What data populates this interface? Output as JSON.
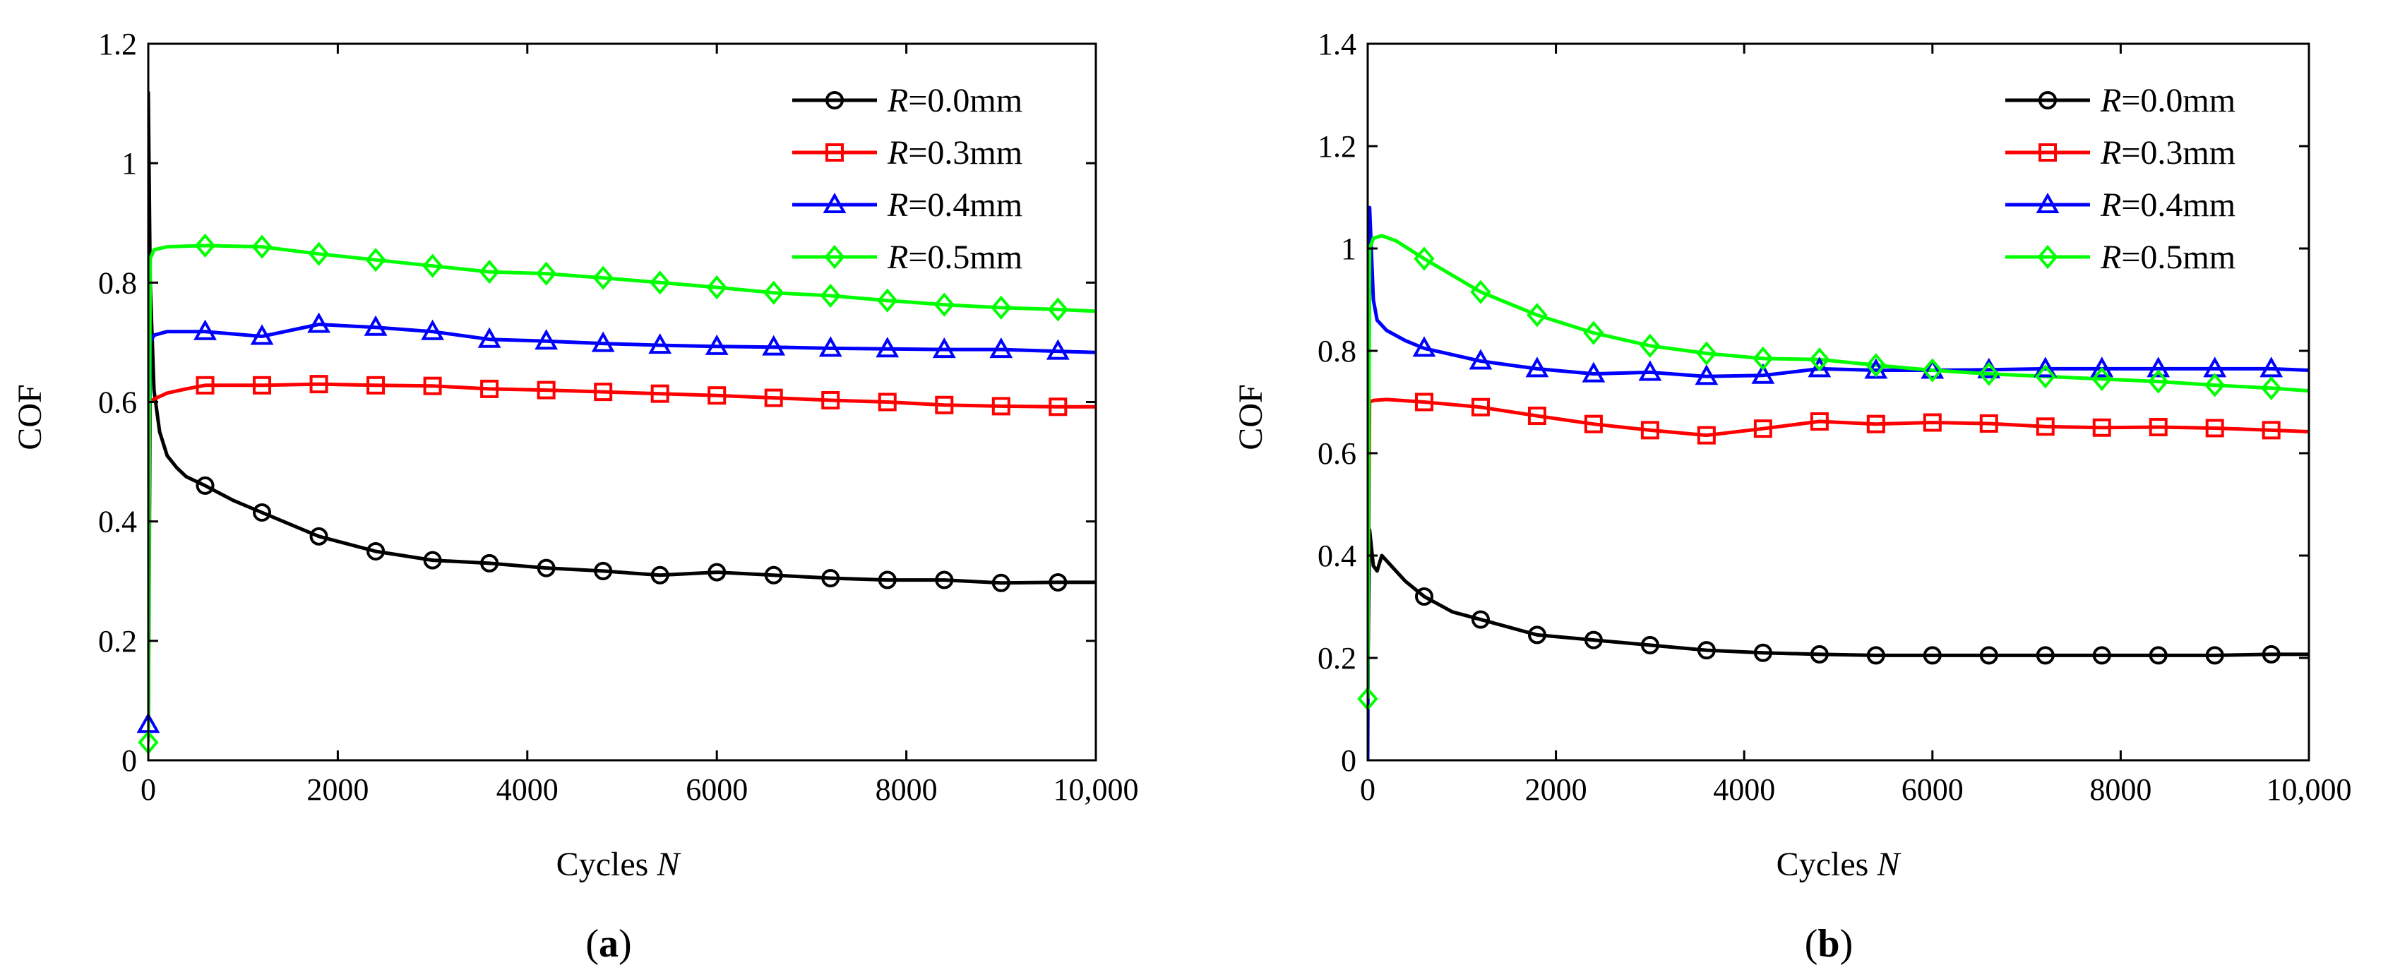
{
  "figure": {
    "charts": [
      {
        "id": "a",
        "caption_open": "(",
        "caption_letter": "a",
        "caption_close": ")"
      },
      {
        "id": "b",
        "caption_open": "(",
        "caption_letter": "b",
        "caption_close": ")"
      }
    ]
  },
  "chart_data": [
    {
      "type": "line",
      "panel": "a",
      "xlabel": "Cycles",
      "xlabel_var": "N",
      "ylabel": "COF",
      "xlim": [
        0,
        10000
      ],
      "ylim": [
        0,
        1.2
      ],
      "xticks": [
        0,
        2000,
        4000,
        6000,
        8000,
        10000
      ],
      "xtick_labels": [
        "0",
        "2000",
        "4000",
        "6000",
        "8000",
        "10,000"
      ],
      "yticks": [
        0,
        0.2,
        0.4,
        0.6,
        0.8,
        1,
        1.2
      ],
      "ytick_labels": [
        "0",
        "0.2",
        "0.4",
        "0.6",
        "0.8",
        "1",
        "1.2"
      ],
      "legend_position": "top-right",
      "series": [
        {
          "name": "R=0.0mm",
          "var": "R",
          "label": "=0.0mm",
          "color": "#000000",
          "marker": "circle",
          "x": [
            0,
            20,
            60,
            120,
            200,
            300,
            400,
            600,
            900,
            1200,
            1800,
            2400,
            3000,
            3600,
            4200,
            4800,
            5400,
            6000,
            6600,
            7200,
            7800,
            8400,
            9000,
            9600,
            10000
          ],
          "y": [
            1.12,
            0.8,
            0.62,
            0.55,
            0.51,
            0.49,
            0.475,
            0.46,
            0.435,
            0.415,
            0.375,
            0.35,
            0.335,
            0.33,
            0.322,
            0.317,
            0.31,
            0.315,
            0.31,
            0.305,
            0.302,
            0.302,
            0.297,
            0.298,
            0.298
          ],
          "marker_x": [
            600,
            1200,
            1800,
            2400,
            3000,
            3600,
            4200,
            4800,
            5400,
            6000,
            6600,
            7200,
            7800,
            8400,
            9000,
            9600
          ]
        },
        {
          "name": "R=0.3mm",
          "var": "R",
          "label": "=0.3mm",
          "color": "#ff0000",
          "marker": "square",
          "x": [
            0,
            20,
            60,
            200,
            400,
            600,
            1200,
            1800,
            2400,
            3000,
            3600,
            4200,
            4800,
            5400,
            6000,
            6600,
            7200,
            7800,
            8400,
            9000,
            9600,
            10000
          ],
          "y": [
            0.05,
            0.6,
            0.605,
            0.615,
            0.622,
            0.628,
            0.628,
            0.63,
            0.628,
            0.627,
            0.622,
            0.62,
            0.617,
            0.614,
            0.611,
            0.607,
            0.603,
            0.6,
            0.595,
            0.593,
            0.592,
            0.592
          ],
          "marker_x": [
            600,
            1200,
            1800,
            2400,
            3000,
            3600,
            4200,
            4800,
            5400,
            6000,
            6600,
            7200,
            7800,
            8400,
            9000,
            9600
          ]
        },
        {
          "name": "R=0.4mm",
          "var": "R",
          "label": "=0.4mm",
          "color": "#0000ff",
          "marker": "triangle",
          "x": [
            0,
            20,
            60,
            200,
            600,
            1200,
            1800,
            2400,
            3000,
            3600,
            4200,
            4800,
            5400,
            6000,
            6600,
            7200,
            7800,
            8400,
            9000,
            9600,
            10000
          ],
          "y": [
            0.06,
            0.7,
            0.712,
            0.718,
            0.718,
            0.71,
            0.73,
            0.725,
            0.718,
            0.705,
            0.702,
            0.698,
            0.695,
            0.693,
            0.692,
            0.69,
            0.689,
            0.688,
            0.688,
            0.685,
            0.683
          ],
          "marker_x": [
            0,
            600,
            1200,
            1800,
            2400,
            3000,
            3600,
            4200,
            4800,
            5400,
            6000,
            6600,
            7200,
            7800,
            8400,
            9000,
            9600
          ]
        },
        {
          "name": "R=0.5mm",
          "var": "R",
          "label": "=0.5mm",
          "color": "#00ff00",
          "marker": "diamond",
          "x": [
            0,
            20,
            60,
            200,
            600,
            1200,
            1800,
            2400,
            3000,
            3600,
            4200,
            4800,
            5400,
            6000,
            6600,
            7200,
            7800,
            8400,
            9000,
            9600,
            10000
          ],
          "y": [
            0.03,
            0.84,
            0.855,
            0.86,
            0.862,
            0.86,
            0.848,
            0.838,
            0.828,
            0.818,
            0.815,
            0.808,
            0.8,
            0.792,
            0.783,
            0.778,
            0.77,
            0.763,
            0.758,
            0.755,
            0.752
          ],
          "marker_x": [
            0,
            600,
            1200,
            1800,
            2400,
            3000,
            3600,
            4200,
            4800,
            5400,
            6000,
            6600,
            7200,
            7800,
            8400,
            9000,
            9600
          ]
        }
      ]
    },
    {
      "type": "line",
      "panel": "b",
      "xlabel": "Cycles",
      "xlabel_var": "N",
      "ylabel": "COF",
      "xlim": [
        0,
        10000
      ],
      "ylim": [
        0,
        1.4
      ],
      "xticks": [
        0,
        2000,
        4000,
        6000,
        8000,
        10000
      ],
      "xtick_labels": [
        "0",
        "2000",
        "4000",
        "6000",
        "8000",
        "10,000"
      ],
      "yticks": [
        0,
        0.2,
        0.4,
        0.6,
        0.8,
        1,
        1.2,
        1.4
      ],
      "ytick_labels": [
        "0",
        "0.2",
        "0.4",
        "0.6",
        "0.8",
        "1",
        "1.2",
        "1.4"
      ],
      "legend_position": "top-right",
      "series": [
        {
          "name": "R=0.0mm",
          "var": "R",
          "label": "=0.0mm",
          "color": "#000000",
          "marker": "circle",
          "x": [
            0,
            20,
            60,
            100,
            150,
            250,
            400,
            600,
            900,
            1200,
            1800,
            2400,
            3000,
            3600,
            4200,
            4800,
            5400,
            6000,
            6600,
            7200,
            7800,
            8400,
            9000,
            9600,
            10000
          ],
          "y": [
            0.15,
            0.45,
            0.38,
            0.37,
            0.4,
            0.38,
            0.35,
            0.32,
            0.29,
            0.275,
            0.245,
            0.235,
            0.225,
            0.215,
            0.21,
            0.207,
            0.205,
            0.205,
            0.205,
            0.205,
            0.205,
            0.205,
            0.205,
            0.207,
            0.207
          ],
          "marker_x": [
            600,
            1200,
            1800,
            2400,
            3000,
            3600,
            4200,
            4800,
            5400,
            6000,
            6600,
            7200,
            7800,
            8400,
            9000,
            9600
          ]
        },
        {
          "name": "R=0.3mm",
          "var": "R",
          "label": "=0.3mm",
          "color": "#ff0000",
          "marker": "square",
          "x": [
            0,
            20,
            60,
            200,
            600,
            1200,
            1800,
            2400,
            3000,
            3600,
            4200,
            4800,
            5400,
            6000,
            6600,
            7200,
            7800,
            8400,
            9000,
            9600,
            10000
          ],
          "y": [
            0.12,
            0.7,
            0.703,
            0.705,
            0.7,
            0.69,
            0.673,
            0.657,
            0.645,
            0.635,
            0.648,
            0.662,
            0.657,
            0.66,
            0.658,
            0.652,
            0.65,
            0.651,
            0.649,
            0.645,
            0.642
          ],
          "marker_x": [
            600,
            1200,
            1800,
            2400,
            3000,
            3600,
            4200,
            4800,
            5400,
            6000,
            6600,
            7200,
            7800,
            8400,
            9000,
            9600
          ]
        },
        {
          "name": "R=0.4mm",
          "var": "R",
          "label": "=0.4mm",
          "color": "#0000ff",
          "marker": "triangle",
          "x": [
            0,
            20,
            60,
            100,
            200,
            400,
            600,
            1200,
            1800,
            2400,
            3000,
            3600,
            4200,
            4800,
            5400,
            6000,
            6600,
            7200,
            7800,
            8400,
            9000,
            9600,
            10000
          ],
          "y": [
            0.0,
            1.08,
            0.9,
            0.86,
            0.84,
            0.82,
            0.805,
            0.78,
            0.765,
            0.755,
            0.758,
            0.75,
            0.752,
            0.765,
            0.762,
            0.762,
            0.763,
            0.765,
            0.765,
            0.765,
            0.765,
            0.765,
            0.762
          ],
          "marker_x": [
            600,
            1200,
            1800,
            2400,
            3000,
            3600,
            4200,
            4800,
            5400,
            6000,
            6600,
            7200,
            7800,
            8400,
            9000,
            9600
          ]
        },
        {
          "name": "R=0.5mm",
          "var": "R",
          "label": "=0.5mm",
          "color": "#00ff00",
          "marker": "diamond",
          "x": [
            0,
            20,
            60,
            150,
            300,
            600,
            1200,
            1800,
            2400,
            3000,
            3600,
            4200,
            4800,
            5400,
            6000,
            6600,
            7200,
            7800,
            8400,
            9000,
            9600,
            10000
          ],
          "y": [
            0.12,
            1.0,
            1.02,
            1.025,
            1.015,
            0.98,
            0.915,
            0.87,
            0.835,
            0.81,
            0.795,
            0.785,
            0.783,
            0.772,
            0.762,
            0.755,
            0.75,
            0.745,
            0.74,
            0.733,
            0.727,
            0.722
          ],
          "marker_x": [
            0,
            600,
            1200,
            1800,
            2400,
            3000,
            3600,
            4200,
            4800,
            5400,
            6000,
            6600,
            7200,
            7800,
            8400,
            9000,
            9600
          ]
        }
      ]
    }
  ]
}
